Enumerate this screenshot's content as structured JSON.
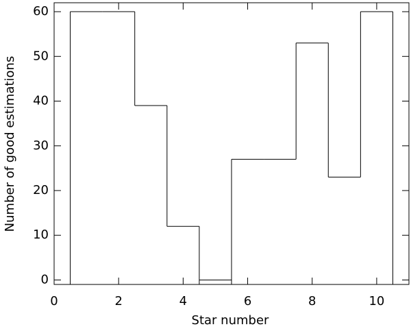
{
  "chart_data": {
    "type": "step",
    "x": [
      1,
      2,
      3,
      4,
      5,
      6,
      7,
      8,
      9,
      10
    ],
    "values": [
      60,
      60,
      39,
      12,
      0,
      27,
      27,
      53,
      23,
      60
    ],
    "color": "#000000",
    "xlabel": "Star number",
    "ylabel": "Number of good estimations",
    "xlim": [
      0,
      11
    ],
    "ylim": [
      -1,
      62
    ],
    "xticks": [
      0,
      2,
      4,
      6,
      8,
      10
    ],
    "yticks": [
      0,
      10,
      20,
      30,
      40,
      50,
      60
    ]
  }
}
